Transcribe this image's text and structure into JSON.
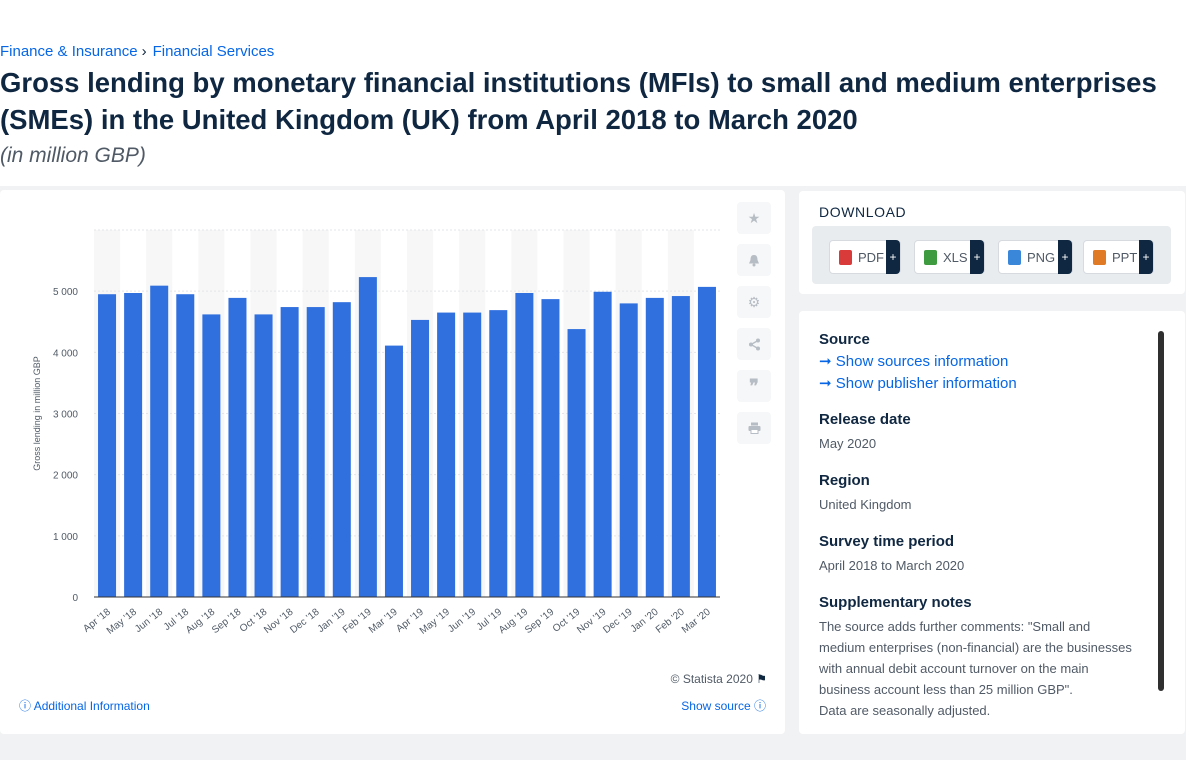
{
  "breadcrumb": [
    "Finance & Insurance",
    "Financial Services"
  ],
  "page_title": "Gross lending by monetary financial institutions (MFIs) to small and medium enterprises (SMEs) in the United Kingdom (UK) from April 2018 to March 2020",
  "page_subtitle": "(in million GBP)",
  "chart_data": {
    "type": "bar",
    "ylabel": "Gross lending in million GBP",
    "xlabel": "",
    "ylim": [
      0,
      6000
    ],
    "yticks": [
      0,
      1000,
      2000,
      3000,
      4000,
      5000
    ],
    "ytick_labels": [
      "0",
      "1 000",
      "2 000",
      "3 000",
      "4 000",
      "5 000"
    ],
    "grid": true,
    "bar_color": "#2f6fde",
    "categories": [
      "Apr '18",
      "May '18",
      "Jun '18",
      "Jul '18",
      "Aug '18",
      "Sep '18",
      "Oct '18",
      "Nov '18",
      "Dec '18",
      "Jan '19",
      "Feb '19",
      "Mar '19",
      "Apr '19",
      "May '19",
      "Jun '19",
      "Jul '19",
      "Aug '19",
      "Sep '19",
      "Oct '19",
      "Nov '19",
      "Dec '19",
      "Jan '20",
      "Feb '20",
      "Mar '20"
    ],
    "values": [
      4950,
      4970,
      5090,
      4950,
      4620,
      4890,
      4620,
      4740,
      4740,
      4820,
      5230,
      4110,
      4530,
      4650,
      4650,
      4690,
      4970,
      4870,
      4380,
      4990,
      4800,
      4890,
      4920,
      5070
    ]
  },
  "toolbar": {
    "icons": [
      "star-icon",
      "bell-icon",
      "gear-icon",
      "share-icon",
      "quote-icon",
      "print-icon"
    ]
  },
  "copyright": "© Statista 2020",
  "additional_info": "Additional Information",
  "show_source": "Show source",
  "download": {
    "title": "DOWNLOAD",
    "buttons": [
      {
        "label": "PDF",
        "color": "#d93a3a"
      },
      {
        "label": "XLS",
        "color": "#3f9b3f"
      },
      {
        "label": "PNG",
        "color": "#3a86d9"
      },
      {
        "label": "PPT",
        "color": "#e07a24"
      }
    ],
    "plus": "+"
  },
  "info": {
    "source_heading": "Source",
    "show_sources": "Show sources information",
    "show_publisher": "Show publisher information",
    "release_heading": "Release date",
    "release_value": "May 2020",
    "region_heading": "Region",
    "region_value": "United Kingdom",
    "survey_heading": "Survey time period",
    "survey_value": "April 2018 to March 2020",
    "notes_heading": "Supplementary notes",
    "notes_value": "The source adds further comments: \"Small and medium enterprises (non-financial) are the businesses with annual debit account turnover on the main business account less than 25 million GBP\".",
    "notes_more": "Data are seasonally adjusted."
  }
}
